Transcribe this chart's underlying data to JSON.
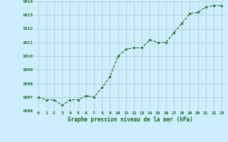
{
  "x": [
    0,
    1,
    2,
    3,
    4,
    5,
    6,
    7,
    8,
    9,
    10,
    11,
    12,
    13,
    14,
    15,
    16,
    17,
    18,
    19,
    20,
    21,
    22,
    23
  ],
  "y": [
    1007.0,
    1006.8,
    1006.8,
    1006.4,
    1006.8,
    1006.8,
    1007.1,
    1007.0,
    1007.7,
    1008.5,
    1010.0,
    1010.5,
    1010.6,
    1010.6,
    1011.2,
    1011.0,
    1011.0,
    1011.7,
    1012.4,
    1013.1,
    1013.2,
    1013.6,
    1013.7,
    1013.7
  ],
  "line_color": "#1a6b1a",
  "marker": "s",
  "marker_size": 2,
  "bg_color": "#cceeff",
  "grid_color": "#b0c8c8",
  "xlabel": "Graphe pression niveau de la mer (hPa)",
  "xlabel_color": "#1a6b1a",
  "tick_color": "#1a6b1a",
  "ylim": [
    1006,
    1014
  ],
  "yticks": [
    1006,
    1007,
    1008,
    1009,
    1010,
    1011,
    1012,
    1013,
    1014
  ],
  "xlim": [
    -0.5,
    23.5
  ],
  "xticks": [
    0,
    1,
    2,
    3,
    4,
    5,
    6,
    7,
    8,
    9,
    10,
    11,
    12,
    13,
    14,
    15,
    16,
    17,
    18,
    19,
    20,
    21,
    22,
    23
  ]
}
